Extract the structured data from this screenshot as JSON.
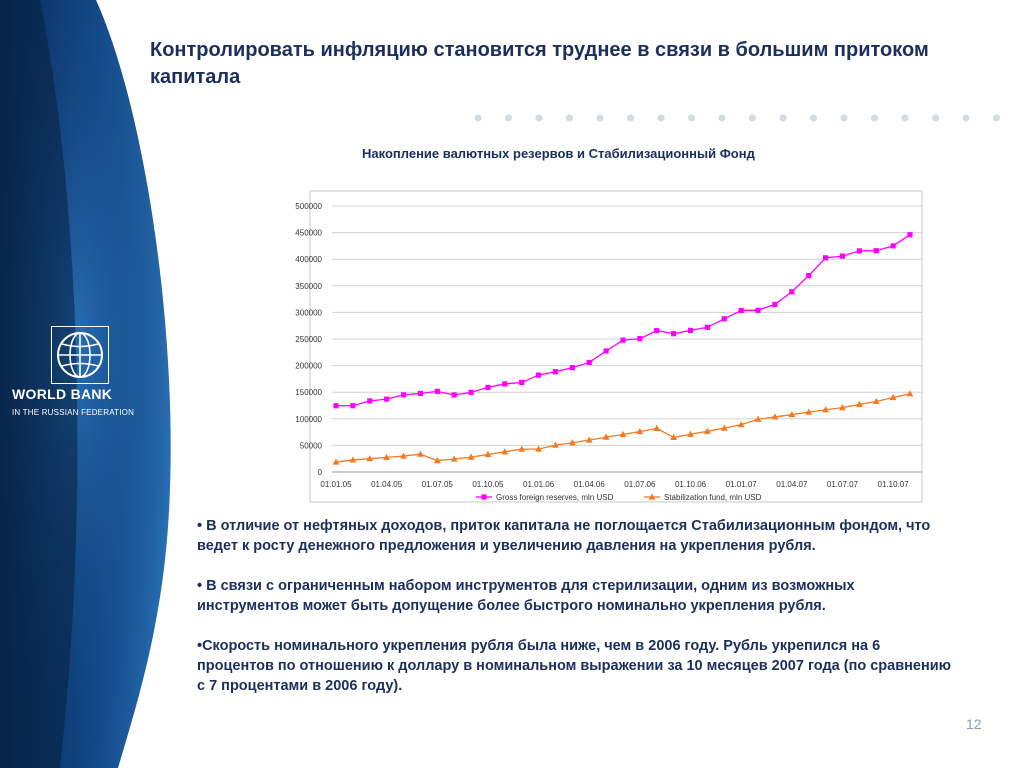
{
  "slide": {
    "title": "Контролировать инфляцию становится труднее в связи в большим притоком капитала",
    "page_number": "12"
  },
  "logo": {
    "name": "WORLD BANK",
    "subtitle": "IN THE RUSSIAN FEDERATION"
  },
  "colors": {
    "sidebar_dark": "#08234f",
    "sidebar_mid": "#1d5fa3",
    "title_text": "#1b2f5c",
    "series_reserves": "#ff00ff",
    "series_fund": "#f47a20",
    "dots": "#d5dbe6"
  },
  "chart_title": "Накопление валютных резервов и Стабилизационный Фонд",
  "chart_data": {
    "type": "line",
    "title": "Накопление валютных резервов и Стабилизационный Фонд",
    "x": [
      "01.01.05",
      "01.02.05",
      "01.03.05",
      "01.04.05",
      "01.05.05",
      "01.06.05",
      "01.07.05",
      "01.08.05",
      "01.09.05",
      "01.10.05",
      "01.11.05",
      "01.12.05",
      "01.01.06",
      "01.02.06",
      "01.03.06",
      "01.04.06",
      "01.05.06",
      "01.06.06",
      "01.07.06",
      "01.08.06",
      "01.09.06",
      "01.10.06",
      "01.11.06",
      "01.12.06",
      "01.01.07",
      "01.02.07",
      "01.03.07",
      "01.04.07",
      "01.05.07",
      "01.06.07",
      "01.07.07",
      "01.08.07",
      "01.09.07",
      "01.10.07",
      "01.11.07"
    ],
    "x_tick_labels": [
      "01.01.05",
      "01.04.05",
      "01.07.05",
      "01.10.05",
      "01.01.06",
      "01.04.06",
      "01.07.06",
      "01.10.06",
      "01.01.07",
      "01.04.07",
      "01.07.07",
      "01.10.07"
    ],
    "y_ticks": [
      0,
      50000,
      100000,
      150000,
      200000,
      250000,
      300000,
      350000,
      400000,
      450000,
      500000
    ],
    "ylim": [
      0,
      500000
    ],
    "grid": true,
    "legend_position": "bottom",
    "series": [
      {
        "name": "Gross foreign reserves, mln USD",
        "marker": "square",
        "values": [
          124500,
          124600,
          133600,
          137000,
          145000,
          147700,
          151600,
          144800,
          149700,
          159000,
          165500,
          168300,
          182200,
          188500,
          196100,
          205900,
          227500,
          247900,
          250600,
          265800,
          260000,
          266200,
          272000,
          288000,
          303700,
          303900,
          315000,
          338800,
          369100,
          402500,
          405800,
          415700,
          416000,
          425000,
          446000
        ]
      },
      {
        "name": "Stabilization fund, mln USD",
        "marker": "triangle",
        "values": [
          18700,
          22700,
          25000,
          27500,
          30000,
          33500,
          21500,
          24500,
          28000,
          33000,
          38000,
          43000,
          43000,
          50500,
          55000,
          60000,
          65500,
          70500,
          76000,
          82000,
          65000,
          71000,
          76500,
          82500,
          89000,
          99000,
          103500,
          108000,
          112500,
          117000,
          121000,
          127000,
          132500,
          140000,
          147000
        ]
      }
    ]
  },
  "bullets": [
    "• В отличие от нефтяных доходов, приток капитала не поглощается Стабилизационным фондом, что ведет к росту денежного предложения и увеличению давления на укрепления рубля.",
    "• В связи с ограниченным набором инструментов для стерилизации, одним из возможных инструментов может быть допущение более быстрого номинально укрепления рубля.",
    "•Скорость номинального укрепления рубля была ниже, чем в 2006 году. Рубль укрепился на 6 процентов по отношению к доллару в номинальном выражении за 10 месяцев 2007 года (по сравнению с 7 процентами в 2006 году)."
  ]
}
